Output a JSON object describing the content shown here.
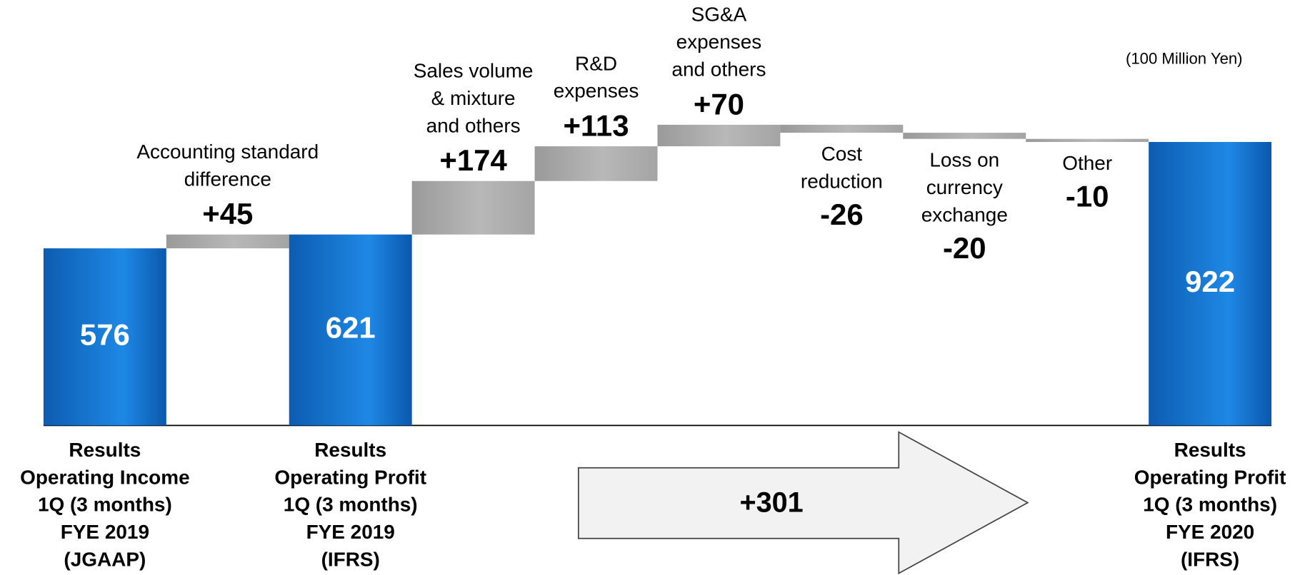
{
  "chart_data": {
    "type": "waterfall",
    "unit_label": "(100 Million Yen)",
    "categories": [
      [
        "Results",
        "Operating Income",
        "1Q (3 months)",
        "FYE 2019",
        "(JGAAP)"
      ],
      [
        "Accounting standard",
        "difference"
      ],
      [
        "Results",
        "Operating Profit",
        "1Q (3 months)",
        "FYE 2019",
        "(IFRS)"
      ],
      [
        "Sales volume",
        "& mixture",
        "and others"
      ],
      [
        "R&D",
        "expenses"
      ],
      [
        "SG&A",
        "expenses",
        "and others"
      ],
      [
        "Cost",
        "reduction"
      ],
      [
        "Loss on",
        "currency",
        "exchange"
      ],
      [
        "Other"
      ],
      [
        "Results",
        "Operating Profit",
        "1Q (3 months)",
        "FYE 2020",
        "(IFRS)"
      ]
    ],
    "kinds": [
      "total",
      "delta",
      "total",
      "delta",
      "delta",
      "delta",
      "delta",
      "delta",
      "delta",
      "total"
    ],
    "values": [
      576,
      45,
      621,
      174,
      113,
      70,
      -26,
      -20,
      -10,
      922
    ],
    "value_labels": [
      "576",
      "+45",
      "621",
      "+174",
      "+113",
      "+70",
      "-26",
      "-20",
      "-10",
      "922"
    ],
    "total_color": "#1e88e5",
    "delta_color": "#b8b8b8",
    "ylim": [
      0,
      1000
    ],
    "arrow_label": "+301"
  }
}
